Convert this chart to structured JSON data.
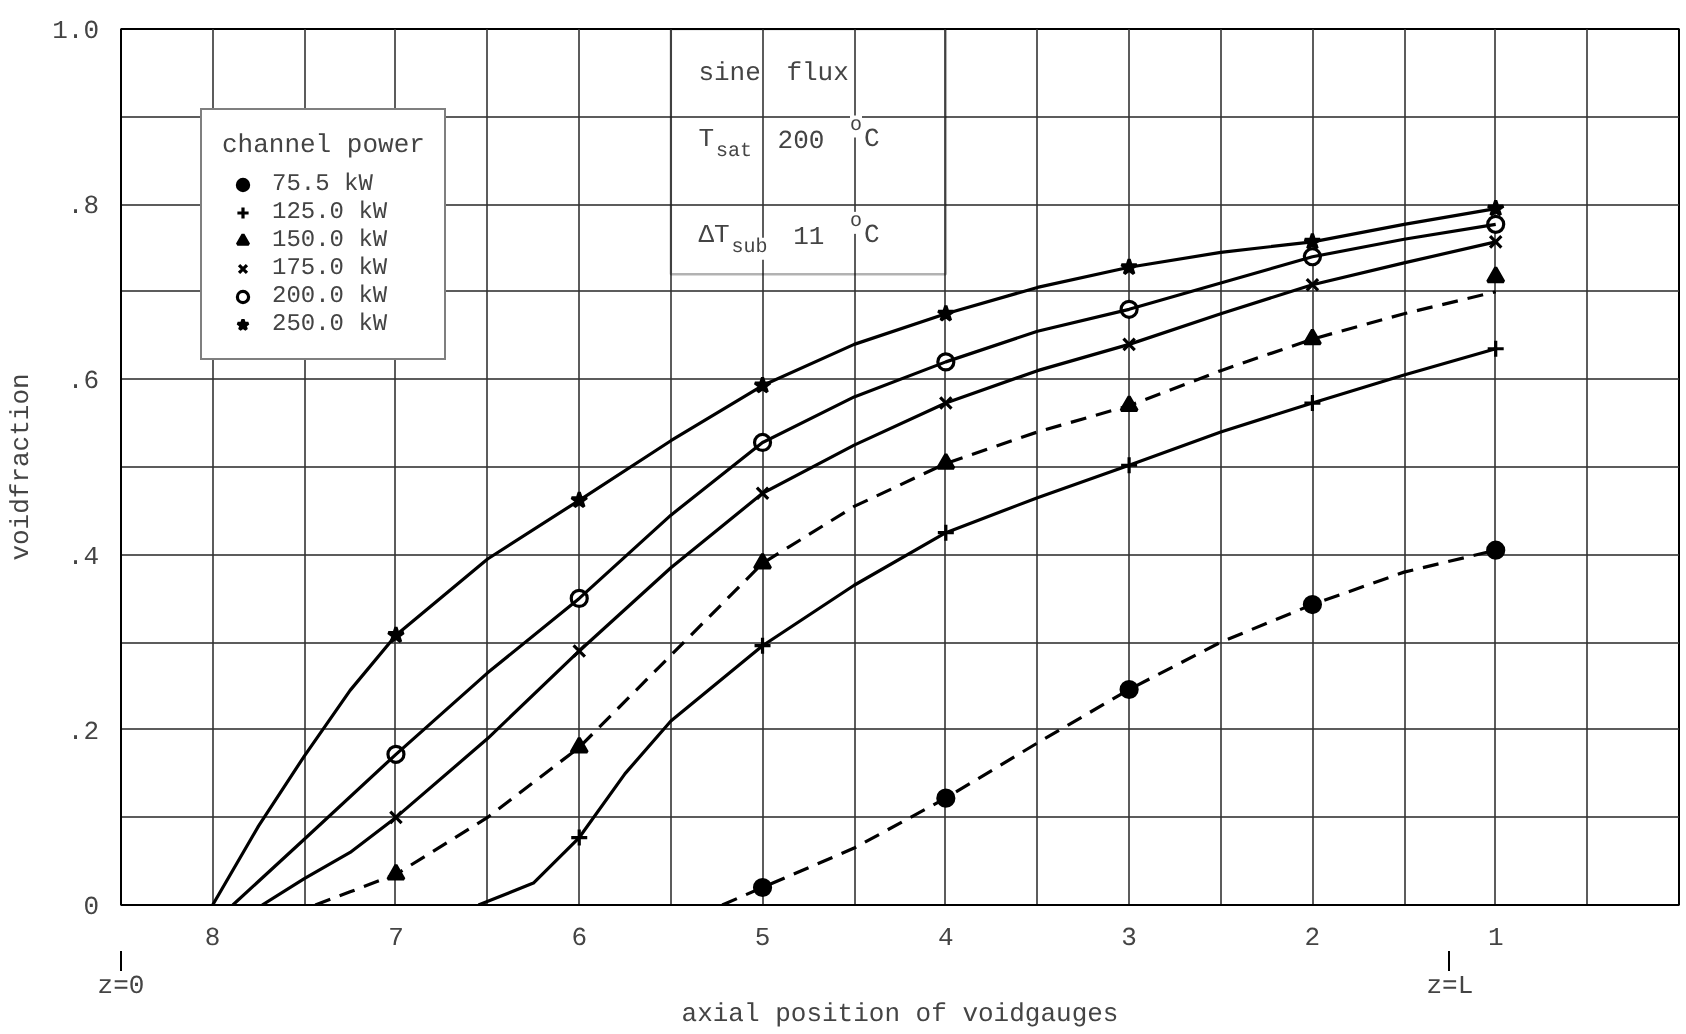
{
  "chart_data": {
    "type": "scatter",
    "xlabel": "axial position of voidgauges",
    "ylabel": "voidfraction",
    "legend_title": "channel power",
    "xlim": [
      8.5,
      0
    ],
    "ylim": [
      0,
      1.0
    ],
    "xticks": [
      8,
      {
        "value": 7.5,
        "label": null
      },
      7,
      {
        "value": 6.5,
        "label": null
      },
      6,
      {
        "value": 5.5,
        "label": null
      },
      5,
      {
        "value": 4.5,
        "label": null
      },
      4,
      {
        "value": 3.5,
        "label": null
      },
      3,
      {
        "value": 2.5,
        "label": null
      },
      2,
      {
        "value": 1.5,
        "label": null
      },
      1,
      {
        "value": 0.5,
        "label": null
      }
    ],
    "yticks": [
      0,
      {
        "value": 0.1,
        "label": null
      },
      {
        "value": 0.2,
        "label": ".2"
      },
      {
        "value": 0.3,
        "label": null
      },
      {
        "value": 0.4,
        "label": ".4"
      },
      {
        "value": 0.5,
        "label": null
      },
      {
        "value": 0.6,
        "label": ".6"
      },
      {
        "value": 0.7,
        "label": null
      },
      {
        "value": 0.8,
        "label": ".8"
      },
      {
        "value": 0.9,
        "label": null
      },
      {
        "value": 1.0,
        "label": "1.0"
      }
    ],
    "grid": true,
    "legend": "top left",
    "annotations": [
      "sine flux",
      "T$_{sat}$ 200 $^{o}$C",
      "ΔT$_{sub}$ 11 $^{o}$C",
      "z=0",
      "z=L"
    ],
    "series": [
      {
        "name": "75.5 kW",
        "marker": "circle",
        "color": "#000000",
        "x": [
          5,
          4,
          3,
          2,
          1
        ],
        "values": [
          0.02,
          0.122,
          0.246,
          0.343,
          0.405
        ]
      },
      {
        "name": "125.0 kW",
        "marker": "cross",
        "color": "#000000",
        "x": [
          6,
          5,
          4,
          3,
          2,
          1
        ],
        "values": [
          0.077,
          0.296,
          0.425,
          0.502,
          0.573,
          0.635
        ]
      },
      {
        "name": "150.0 kW",
        "marker": "triangle",
        "color": "#000000",
        "x": [
          7,
          6,
          5,
          4,
          3,
          2,
          1
        ],
        "values": [
          0.035,
          0.18,
          0.39,
          0.504,
          0.57,
          0.646,
          0.717
        ]
      },
      {
        "name": "175.0 kW",
        "marker": "x",
        "color": "#000000",
        "x": [
          7,
          6,
          5,
          4,
          3,
          2,
          1
        ],
        "values": [
          0.1,
          0.29,
          0.47,
          0.573,
          0.64,
          0.708,
          0.757
        ]
      },
      {
        "name": "200.0 kW",
        "marker": "circle_open",
        "color": "#000000",
        "x": [
          7,
          6,
          5,
          4,
          3,
          2,
          1
        ],
        "values": [
          0.172,
          0.35,
          0.528,
          0.62,
          0.68,
          0.74,
          0.777
        ]
      },
      {
        "name": "250.0 kW",
        "marker": "star",
        "color": "#000000",
        "x": [
          7,
          6,
          5,
          4,
          3,
          2,
          1
        ],
        "values": [
          0.308,
          0.462,
          0.593,
          0.675,
          0.728,
          0.757,
          0.795
        ]
      },
      {
        "type": "line",
        "line_style": "dashed",
        "color": "#000000",
        "x": [
          5.22,
          5,
          4.5,
          4,
          3.5,
          3,
          2.5,
          2,
          1.5,
          1
        ],
        "values": [
          0,
          0.02,
          0.065,
          0.122,
          0.185,
          0.246,
          0.3,
          0.343,
          0.38,
          0.405
        ]
      },
      {
        "type": "line",
        "line_style": "solid",
        "color": "#000000",
        "x": [
          6.55,
          6.25,
          6,
          5.75,
          5.5,
          5,
          4.5,
          4,
          3.5,
          3,
          2.5,
          2,
          1.5,
          1
        ],
        "values": [
          0,
          0.025,
          0.077,
          0.15,
          0.21,
          0.296,
          0.365,
          0.425,
          0.465,
          0.502,
          0.54,
          0.573,
          0.605,
          0.635
        ]
      },
      {
        "type": "line",
        "line_style": "dashed",
        "color": "#000000",
        "x": [
          7.44,
          7.25,
          7,
          6.5,
          6,
          5.5,
          5,
          4.5,
          4,
          3.5,
          3,
          2.5,
          2,
          1.5,
          1
        ],
        "values": [
          0,
          0.015,
          0.035,
          0.1,
          0.18,
          0.285,
          0.39,
          0.455,
          0.504,
          0.54,
          0.57,
          0.61,
          0.646,
          0.675,
          0.7
        ]
      },
      {
        "type": "line",
        "line_style": "solid",
        "color": "#000000",
        "x": [
          7.73,
          7.5,
          7.25,
          7,
          6.5,
          6,
          5.5,
          5,
          4.5,
          4,
          3.5,
          3,
          2.5,
          2,
          1.5,
          1
        ],
        "values": [
          0,
          0.03,
          0.06,
          0.1,
          0.19,
          0.29,
          0.385,
          0.47,
          0.525,
          0.573,
          0.61,
          0.64,
          0.675,
          0.708,
          0.733,
          0.757
        ]
      },
      {
        "type": "line",
        "line_style": "solid",
        "color": "#000000",
        "x": [
          7.89,
          7.5,
          7,
          6.5,
          6,
          5.5,
          5,
          4.5,
          4,
          3.5,
          3,
          2.5,
          2,
          1.5,
          1
        ],
        "values": [
          0,
          0.075,
          0.172,
          0.265,
          0.35,
          0.445,
          0.528,
          0.58,
          0.62,
          0.655,
          0.68,
          0.71,
          0.74,
          0.76,
          0.777
        ]
      },
      {
        "type": "line",
        "line_style": "solid",
        "color": "#000000",
        "x": [
          8.0,
          7.75,
          7.5,
          7.25,
          7,
          6.5,
          6,
          5.5,
          5,
          4.5,
          4,
          3.5,
          3,
          2.5,
          2,
          1.5,
          1
        ],
        "values": [
          0,
          0.09,
          0.17,
          0.245,
          0.308,
          0.395,
          0.462,
          0.53,
          0.593,
          0.64,
          0.675,
          0.705,
          0.728,
          0.745,
          0.757,
          0.777,
          0.795
        ]
      }
    ]
  }
}
